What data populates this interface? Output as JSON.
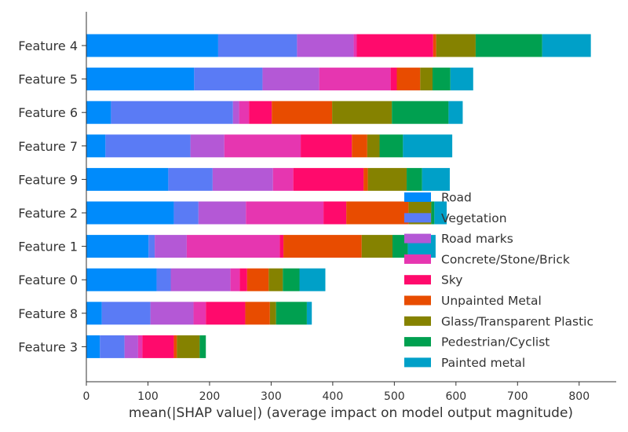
{
  "chart_data": {
    "type": "bar",
    "orientation": "horizontal",
    "stacked": true,
    "categories": [
      "Feature 4",
      "Feature 5",
      "Feature 6",
      "Feature 7",
      "Feature 9",
      "Feature 2",
      "Feature 1",
      "Feature 0",
      "Feature 8",
      "Feature 3"
    ],
    "series": [
      {
        "name": "Road",
        "color": "#008bfb",
        "values": [
          214,
          175,
          40,
          31,
          133,
          142,
          101,
          114,
          25,
          22
        ]
      },
      {
        "name": "Vegetation",
        "color": "#5a7bf5",
        "values": [
          128,
          111,
          198,
          138,
          72,
          40,
          10,
          23,
          79,
          40
        ]
      },
      {
        "name": "Road marks",
        "color": "#b458d6",
        "values": [
          92,
          92,
          10,
          55,
          98,
          77,
          52,
          97,
          70,
          22
        ]
      },
      {
        "name": "Concrete/Stone/Brick",
        "color": "#e636b0",
        "values": [
          5,
          116,
          16,
          124,
          33,
          126,
          151,
          15,
          20,
          7
        ]
      },
      {
        "name": "Sky",
        "color": "#ff0a6c",
        "values": [
          124,
          10,
          37,
          83,
          114,
          37,
          6,
          12,
          64,
          51
        ]
      },
      {
        "name": "Unpainted Metal",
        "color": "#e84c00",
        "values": [
          5,
          38,
          98,
          25,
          7,
          101,
          127,
          35,
          40,
          5
        ]
      },
      {
        "name": "Glass/Transparent Plastic",
        "color": "#858200",
        "values": [
          64,
          20,
          97,
          20,
          63,
          37,
          50,
          23,
          10,
          37
        ]
      },
      {
        "name": "Pedestrian/Cyclist",
        "color": "#00a050",
        "values": [
          108,
          29,
          92,
          38,
          25,
          5,
          25,
          27,
          50,
          10
        ]
      },
      {
        "name": "Painted metal",
        "color": "#00a0c8",
        "values": [
          79,
          37,
          23,
          80,
          45,
          20,
          45,
          42,
          8,
          0
        ]
      }
    ],
    "xlabel": "mean(|SHAP value|) (average impact on model output magnitude)",
    "ylabel": "",
    "xlim": [
      0,
      860
    ],
    "xticks": [
      0,
      100,
      200,
      300,
      400,
      500,
      600,
      700,
      800
    ],
    "grid": false,
    "legend_position": "lower-right"
  }
}
